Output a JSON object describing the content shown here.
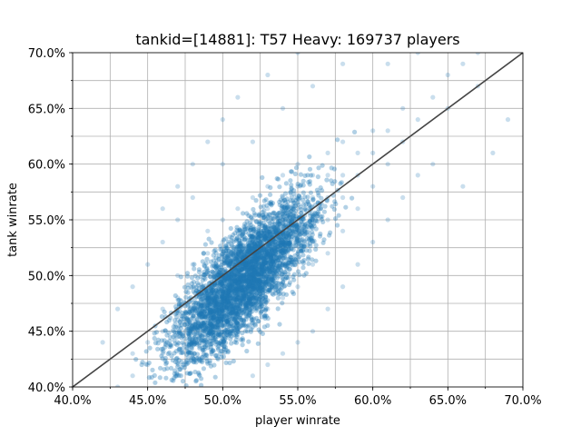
{
  "chart_data": {
    "type": "scatter",
    "title": "tankid=[14881]: T57 Heavy: 169737 players",
    "xlabel": "player winrate",
    "ylabel": "tank winrate",
    "xlim": [
      0.4,
      0.7
    ],
    "ylim": [
      0.4,
      0.7
    ],
    "x_ticks": [
      {
        "value": 0.4,
        "label": "40.0%"
      },
      {
        "value": 0.45,
        "label": "45.0%"
      },
      {
        "value": 0.5,
        "label": "50.0%"
      },
      {
        "value": 0.55,
        "label": "55.0%"
      },
      {
        "value": 0.6,
        "label": "60.0%"
      },
      {
        "value": 0.65,
        "label": "65.0%"
      },
      {
        "value": 0.7,
        "label": "70.0%"
      }
    ],
    "y_ticks": [
      {
        "value": 0.4,
        "label": "40.0%"
      },
      {
        "value": 0.45,
        "label": "45.0%"
      },
      {
        "value": 0.5,
        "label": "50.0%"
      },
      {
        "value": 0.55,
        "label": "55.0%"
      },
      {
        "value": 0.6,
        "label": "60.0%"
      },
      {
        "value": 0.65,
        "label": "65.0%"
      },
      {
        "value": 0.7,
        "label": "70.0%"
      }
    ],
    "minor_step": 0.025,
    "grid": true,
    "reference_line": {
      "x": [
        0.4,
        0.7
      ],
      "y": [
        0.4,
        0.7
      ]
    },
    "point_color": "#1f77b4",
    "point_alpha": 0.12,
    "points": [
      [
        0.43,
        0.4
      ],
      [
        0.44,
        0.41
      ],
      [
        0.44,
        0.43
      ],
      [
        0.45,
        0.42
      ],
      [
        0.45,
        0.44
      ],
      [
        0.46,
        0.43
      ],
      [
        0.46,
        0.45
      ],
      [
        0.46,
        0.47
      ],
      [
        0.47,
        0.44
      ],
      [
        0.47,
        0.46
      ],
      [
        0.47,
        0.48
      ],
      [
        0.47,
        0.5
      ],
      [
        0.48,
        0.45
      ],
      [
        0.48,
        0.47
      ],
      [
        0.48,
        0.49
      ],
      [
        0.48,
        0.51
      ],
      [
        0.49,
        0.46
      ],
      [
        0.49,
        0.48
      ],
      [
        0.49,
        0.5
      ],
      [
        0.49,
        0.52
      ],
      [
        0.49,
        0.54
      ],
      [
        0.5,
        0.44
      ],
      [
        0.5,
        0.47
      ],
      [
        0.5,
        0.49
      ],
      [
        0.5,
        0.51
      ],
      [
        0.5,
        0.53
      ],
      [
        0.5,
        0.55
      ],
      [
        0.51,
        0.45
      ],
      [
        0.51,
        0.48
      ],
      [
        0.51,
        0.5
      ],
      [
        0.51,
        0.52
      ],
      [
        0.51,
        0.54
      ],
      [
        0.51,
        0.56
      ],
      [
        0.52,
        0.46
      ],
      [
        0.52,
        0.49
      ],
      [
        0.52,
        0.51
      ],
      [
        0.52,
        0.53
      ],
      [
        0.52,
        0.55
      ],
      [
        0.52,
        0.57
      ],
      [
        0.53,
        0.47
      ],
      [
        0.53,
        0.5
      ],
      [
        0.53,
        0.52
      ],
      [
        0.53,
        0.54
      ],
      [
        0.53,
        0.56
      ],
      [
        0.53,
        0.58
      ],
      [
        0.54,
        0.48
      ],
      [
        0.54,
        0.51
      ],
      [
        0.54,
        0.53
      ],
      [
        0.54,
        0.55
      ],
      [
        0.54,
        0.57
      ],
      [
        0.54,
        0.59
      ],
      [
        0.55,
        0.49
      ],
      [
        0.55,
        0.52
      ],
      [
        0.55,
        0.54
      ],
      [
        0.55,
        0.56
      ],
      [
        0.55,
        0.58
      ],
      [
        0.55,
        0.6
      ],
      [
        0.56,
        0.51
      ],
      [
        0.56,
        0.53
      ],
      [
        0.56,
        0.55
      ],
      [
        0.56,
        0.57
      ],
      [
        0.56,
        0.59
      ],
      [
        0.57,
        0.52
      ],
      [
        0.57,
        0.55
      ],
      [
        0.57,
        0.57
      ],
      [
        0.57,
        0.59
      ],
      [
        0.57,
        0.61
      ],
      [
        0.58,
        0.54
      ],
      [
        0.58,
        0.57
      ],
      [
        0.58,
        0.59
      ],
      [
        0.58,
        0.62
      ],
      [
        0.59,
        0.56
      ],
      [
        0.59,
        0.59
      ],
      [
        0.59,
        0.61
      ],
      [
        0.6,
        0.58
      ],
      [
        0.6,
        0.61
      ],
      [
        0.6,
        0.63
      ],
      [
        0.61,
        0.6
      ],
      [
        0.61,
        0.63
      ],
      [
        0.62,
        0.62
      ],
      [
        0.62,
        0.65
      ],
      [
        0.63,
        0.64
      ],
      [
        0.64,
        0.66
      ],
      [
        0.65,
        0.68
      ],
      [
        0.66,
        0.69
      ],
      [
        0.67,
        0.7
      ],
      [
        0.46,
        0.56
      ],
      [
        0.47,
        0.58
      ],
      [
        0.48,
        0.6
      ],
      [
        0.49,
        0.62
      ],
      [
        0.5,
        0.64
      ],
      [
        0.51,
        0.66
      ],
      [
        0.53,
        0.68
      ],
      [
        0.55,
        0.7
      ],
      [
        0.52,
        0.41
      ],
      [
        0.53,
        0.42
      ],
      [
        0.54,
        0.43
      ],
      [
        0.55,
        0.44
      ],
      [
        0.56,
        0.45
      ],
      [
        0.57,
        0.47
      ],
      [
        0.58,
        0.49
      ],
      [
        0.59,
        0.51
      ],
      [
        0.6,
        0.53
      ],
      [
        0.61,
        0.55
      ],
      [
        0.62,
        0.57
      ],
      [
        0.63,
        0.59
      ],
      [
        0.64,
        0.6
      ],
      [
        0.66,
        0.58
      ],
      [
        0.68,
        0.61
      ],
      [
        0.69,
        0.64
      ],
      [
        0.43,
        0.47
      ],
      [
        0.42,
        0.44
      ],
      [
        0.44,
        0.49
      ],
      [
        0.45,
        0.51
      ],
      [
        0.46,
        0.53
      ],
      [
        0.47,
        0.55
      ],
      [
        0.48,
        0.57
      ],
      [
        0.5,
        0.6
      ],
      [
        0.52,
        0.62
      ],
      [
        0.54,
        0.65
      ],
      [
        0.56,
        0.67
      ],
      [
        0.58,
        0.69
      ],
      [
        0.61,
        0.69
      ],
      [
        0.63,
        0.7
      ],
      [
        0.65,
        0.65
      ],
      [
        0.67,
        0.67
      ]
    ]
  }
}
